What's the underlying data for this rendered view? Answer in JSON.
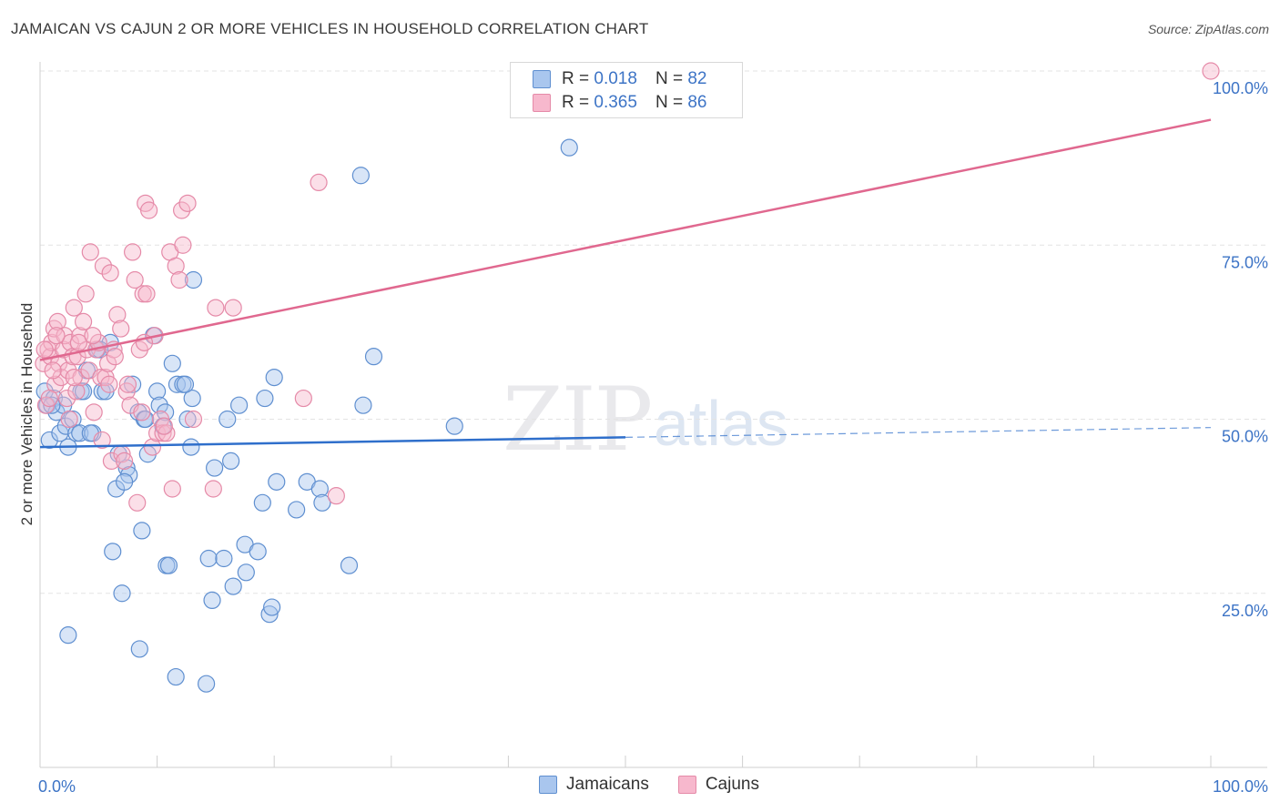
{
  "title": "JAMAICAN VS CAJUN 2 OR MORE VEHICLES IN HOUSEHOLD CORRELATION CHART",
  "source": "Source: ZipAtlas.com",
  "watermark": {
    "zip": "ZIP",
    "atlas": "atlas"
  },
  "legend_top": {
    "r_label": "R =",
    "n_label": "N =",
    "jamaicans": {
      "r": "0.018",
      "n": "82"
    },
    "cajuns": {
      "r": "0.365",
      "n": "86"
    }
  },
  "colors": {
    "jam_fill": "#a9c6ee",
    "jam_stroke": "#5f8fd0",
    "jam_line": "#2f6fcb",
    "caj_fill": "#f7b8cd",
    "caj_stroke": "#e58aa8",
    "caj_line": "#e0688f",
    "grid": "#e3e3e3",
    "tick_label": "#3d74c6"
  },
  "chart_data": {
    "type": "scatter",
    "title": "JAMAICAN VS CAJUN 2 OR MORE VEHICLES IN HOUSEHOLD CORRELATION CHART",
    "xlabel": "",
    "ylabel": "2 or more Vehicles in Household",
    "xlim": [
      0,
      100
    ],
    "ylim": [
      0,
      100
    ],
    "x_tick_labels": [
      "0.0%",
      "100.0%"
    ],
    "y_tick_labels": [
      "25.0%",
      "50.0%",
      "75.0%",
      "100.0%"
    ],
    "y_ticks": [
      25,
      50,
      75,
      100
    ],
    "legend": [
      "Jamaicans",
      "Cajuns"
    ],
    "series": [
      {
        "name": "Jamaicans",
        "trend": {
          "x0": 0,
          "y0": 46.0,
          "x1": 50,
          "y1": 47.4,
          "x_dash_end": 100,
          "y_dash_end": 48.8
        },
        "points": [
          [
            0.4,
            54
          ],
          [
            0.6,
            52
          ],
          [
            0.8,
            47
          ],
          [
            1.2,
            53
          ],
          [
            1.4,
            51
          ],
          [
            1.7,
            48
          ],
          [
            2.0,
            52
          ],
          [
            2.2,
            49
          ],
          [
            2.4,
            46
          ],
          [
            2.8,
            50
          ],
          [
            3.1,
            48
          ],
          [
            3.4,
            48
          ],
          [
            3.5,
            54
          ],
          [
            4.0,
            57
          ],
          [
            4.5,
            48
          ],
          [
            4.9,
            60
          ],
          [
            5.3,
            54
          ],
          [
            5.6,
            54
          ],
          [
            6.0,
            61
          ],
          [
            6.2,
            31
          ],
          [
            6.5,
            40
          ],
          [
            6.7,
            45
          ],
          [
            7.0,
            25
          ],
          [
            7.4,
            43
          ],
          [
            7.6,
            42
          ],
          [
            7.9,
            55
          ],
          [
            8.4,
            51
          ],
          [
            8.5,
            17
          ],
          [
            8.7,
            34
          ],
          [
            8.9,
            50
          ],
          [
            9.2,
            45
          ],
          [
            9.7,
            62
          ],
          [
            10.0,
            54
          ],
          [
            10.2,
            52
          ],
          [
            10.5,
            49
          ],
          [
            10.7,
            51
          ],
          [
            10.8,
            29
          ],
          [
            11.0,
            29
          ],
          [
            11.3,
            58
          ],
          [
            11.6,
            13
          ],
          [
            11.7,
            55
          ],
          [
            12.2,
            55
          ],
          [
            12.6,
            50
          ],
          [
            12.9,
            46
          ],
          [
            13.0,
            53
          ],
          [
            13.1,
            70
          ],
          [
            14.2,
            12
          ],
          [
            14.4,
            30
          ],
          [
            14.7,
            24
          ],
          [
            14.9,
            43
          ],
          [
            15.7,
            30
          ],
          [
            16.0,
            50
          ],
          [
            16.5,
            26
          ],
          [
            17.0,
            52
          ],
          [
            17.5,
            32
          ],
          [
            17.6,
            28
          ],
          [
            19.0,
            38
          ],
          [
            19.2,
            53
          ],
          [
            19.6,
            22
          ],
          [
            19.8,
            23
          ],
          [
            20.0,
            56
          ],
          [
            20.2,
            41
          ],
          [
            21.9,
            37
          ],
          [
            22.8,
            41
          ],
          [
            23.9,
            40
          ],
          [
            24.1,
            38
          ],
          [
            26.4,
            29
          ],
          [
            27.4,
            85
          ],
          [
            27.6,
            52
          ],
          [
            28.5,
            59
          ],
          [
            35.4,
            49
          ],
          [
            45.2,
            89
          ],
          [
            2.4,
            19
          ],
          [
            7.2,
            41
          ],
          [
            9.0,
            50
          ],
          [
            1.0,
            52
          ],
          [
            3.7,
            54
          ],
          [
            5.1,
            60
          ],
          [
            12.4,
            55
          ],
          [
            4.3,
            48
          ],
          [
            16.3,
            44
          ],
          [
            18.6,
            31
          ]
        ]
      },
      {
        "name": "Cajuns",
        "trend": {
          "x0": 0,
          "y0": 58.5,
          "x1": 100,
          "y1": 93.0
        },
        "points": [
          [
            0.3,
            58
          ],
          [
            0.5,
            52
          ],
          [
            0.7,
            60
          ],
          [
            0.9,
            59
          ],
          [
            1.0,
            61
          ],
          [
            1.2,
            63
          ],
          [
            1.3,
            55
          ],
          [
            1.5,
            64
          ],
          [
            1.6,
            58
          ],
          [
            1.8,
            56
          ],
          [
            2.0,
            60
          ],
          [
            2.1,
            62
          ],
          [
            2.3,
            53
          ],
          [
            2.4,
            57
          ],
          [
            2.6,
            61
          ],
          [
            2.8,
            59
          ],
          [
            2.9,
            66
          ],
          [
            3.1,
            54
          ],
          [
            3.2,
            59
          ],
          [
            3.4,
            62
          ],
          [
            3.5,
            56
          ],
          [
            3.7,
            64
          ],
          [
            3.9,
            68
          ],
          [
            4.0,
            60
          ],
          [
            4.2,
            57
          ],
          [
            4.3,
            74
          ],
          [
            4.6,
            51
          ],
          [
            4.8,
            60
          ],
          [
            5.0,
            61
          ],
          [
            5.2,
            56
          ],
          [
            5.4,
            72
          ],
          [
            5.6,
            56
          ],
          [
            5.8,
            58
          ],
          [
            6.0,
            71
          ],
          [
            6.1,
            44
          ],
          [
            6.3,
            60
          ],
          [
            6.6,
            65
          ],
          [
            6.9,
            63
          ],
          [
            7.0,
            45
          ],
          [
            7.2,
            44
          ],
          [
            7.4,
            54
          ],
          [
            7.7,
            52
          ],
          [
            7.9,
            74
          ],
          [
            8.1,
            70
          ],
          [
            8.3,
            38
          ],
          [
            8.5,
            60
          ],
          [
            8.7,
            51
          ],
          [
            8.8,
            68
          ],
          [
            9.0,
            81
          ],
          [
            9.3,
            80
          ],
          [
            9.6,
            46
          ],
          [
            9.8,
            62
          ],
          [
            10.0,
            48
          ],
          [
            10.3,
            50
          ],
          [
            10.5,
            48
          ],
          [
            10.8,
            48
          ],
          [
            11.1,
            74
          ],
          [
            11.3,
            40
          ],
          [
            11.6,
            72
          ],
          [
            11.9,
            70
          ],
          [
            12.1,
            80
          ],
          [
            12.2,
            75
          ],
          [
            12.6,
            81
          ],
          [
            13.1,
            50
          ],
          [
            14.8,
            40
          ],
          [
            15.0,
            66
          ],
          [
            16.5,
            66
          ],
          [
            22.5,
            53
          ],
          [
            23.8,
            84
          ],
          [
            25.3,
            39
          ],
          [
            100,
            100
          ],
          [
            0.4,
            60
          ],
          [
            1.1,
            57
          ],
          [
            2.5,
            50
          ],
          [
            3.3,
            61
          ],
          [
            5.9,
            55
          ],
          [
            6.4,
            59
          ],
          [
            7.5,
            55
          ],
          [
            8.9,
            61
          ],
          [
            9.1,
            68
          ],
          [
            10.6,
            49
          ],
          [
            1.4,
            62
          ],
          [
            2.9,
            56
          ],
          [
            4.5,
            62
          ],
          [
            0.8,
            53
          ],
          [
            5.3,
            47
          ]
        ]
      }
    ]
  }
}
